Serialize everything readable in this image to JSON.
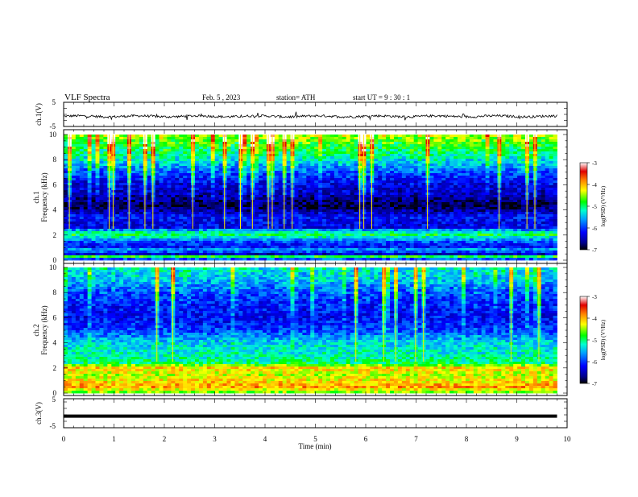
{
  "header": {
    "title": "VLF  Spectra",
    "date": "Feb. 5  , 2023",
    "station": "station= ATH",
    "start": "start  UT  =   9  : 30 : 1"
  },
  "chart_data": [
    {
      "type": "line",
      "panel": "ch1-waveform",
      "ylabel": "ch.1(V)",
      "ylim": [
        -5,
        5
      ],
      "y_ticks": [
        "5",
        "-5"
      ],
      "xlim": [
        0,
        10
      ],
      "data_end_min": 9.8,
      "approx_level_V": -0.8,
      "noise_amplitude_V": 0.5
    },
    {
      "type": "heatmap",
      "panel": "ch1-spectrogram",
      "ylabel": "ch.1\nFrequency  (kHz)",
      "ylim": [
        0,
        10
      ],
      "y_ticks": [
        "0",
        "2",
        "4",
        "6",
        "8",
        "10"
      ],
      "xlim": [
        0,
        10
      ],
      "data_end_min": 9.8,
      "colorbar": {
        "label": "log(PSD) (V²/Hz)",
        "range": [
          -7,
          -3
        ],
        "ticks": [
          "-3",
          "-4",
          "-5",
          "-6",
          "-7"
        ]
      },
      "freq_profile_khz": [
        [
          0.0,
          -6.3
        ],
        [
          0.3,
          -4.8
        ],
        [
          0.5,
          -6.6
        ],
        [
          0.8,
          -5.4
        ],
        [
          1.0,
          -6.2
        ],
        [
          1.5,
          -5.9
        ],
        [
          2.0,
          -4.9
        ],
        [
          2.3,
          -5.3
        ],
        [
          2.6,
          -6.3
        ],
        [
          3.5,
          -6.2
        ],
        [
          4.3,
          -6.9
        ],
        [
          5.3,
          -6.5
        ],
        [
          6.0,
          -6.4
        ],
        [
          7.0,
          -6.0
        ],
        [
          8.0,
          -5.4
        ],
        [
          9.0,
          -5.0
        ],
        [
          10.0,
          -4.6
        ]
      ]
    },
    {
      "type": "heatmap",
      "panel": "ch2-spectrogram",
      "ylabel": "ch.2\nFrequency  (kHz)",
      "ylim": [
        0,
        10
      ],
      "y_ticks": [
        "0",
        "2",
        "4",
        "6",
        "8",
        "10"
      ],
      "xlim": [
        0,
        10
      ],
      "data_end_min": 9.8,
      "colorbar": {
        "label": "log(PSD) (V²/Hz)",
        "range": [
          -7,
          -3
        ],
        "ticks": [
          "-3",
          "-4",
          "-5",
          "-6",
          "-7"
        ]
      },
      "freq_profile_khz": [
        [
          0.0,
          -4.7
        ],
        [
          0.5,
          -3.9
        ],
        [
          1.0,
          -4.2
        ],
        [
          1.5,
          -4.4
        ],
        [
          2.0,
          -4.1
        ],
        [
          2.4,
          -5.0
        ],
        [
          3.0,
          -5.2
        ],
        [
          4.0,
          -5.4
        ],
        [
          5.0,
          -6.0
        ],
        [
          6.0,
          -6.3
        ],
        [
          7.0,
          -6.2
        ],
        [
          8.0,
          -6.0
        ],
        [
          9.0,
          -5.6
        ],
        [
          10.0,
          -5.4
        ]
      ]
    },
    {
      "type": "line",
      "panel": "ch3-waveform",
      "ylabel": "ch.3(V)",
      "ylim": [
        -5,
        5
      ],
      "y_ticks": [
        "5",
        "-5"
      ],
      "xlim": [
        0,
        10
      ],
      "data_end_min": 9.8,
      "level_V": -1.0,
      "xlabel": "Time  (min)",
      "x_ticks": [
        "0",
        "1",
        "2",
        "3",
        "4",
        "5",
        "6",
        "7",
        "8",
        "9",
        "10"
      ]
    }
  ]
}
